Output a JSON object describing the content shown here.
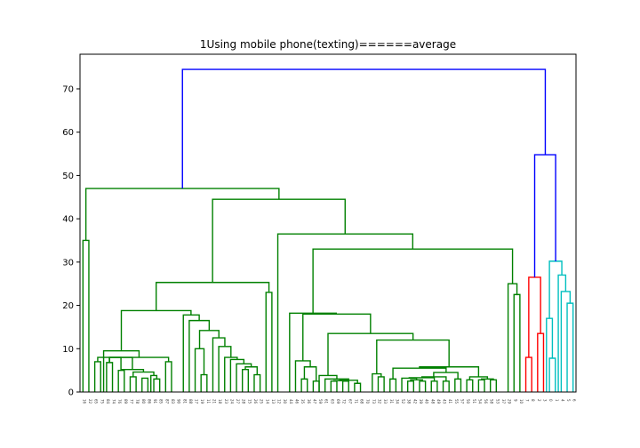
{
  "chart_data": {
    "type": "dendrogram",
    "title": "1Using mobile phone(texting)======average",
    "xlabel": "",
    "ylabel": "",
    "ylim": [
      0,
      78
    ],
    "yticks": [
      0,
      10,
      20,
      30,
      40,
      50,
      60,
      70
    ],
    "grid": false,
    "leaf_labels": [
      "16",
      "22",
      "65",
      "75",
      "84",
      "74",
      "76",
      "89",
      "77",
      "78",
      "80",
      "86",
      "91",
      "85",
      "87",
      "83",
      "90",
      "81",
      "88",
      "17",
      "19",
      "11",
      "21",
      "18",
      "23",
      "24",
      "27",
      "28",
      "15",
      "26",
      "25",
      "14",
      "13",
      "12",
      "30",
      "44",
      "46",
      "35",
      "36",
      "47",
      "59",
      "61",
      "63",
      "69",
      "72",
      "67",
      "71",
      "68",
      "70",
      "73",
      "32",
      "33",
      "31",
      "34",
      "52",
      "38",
      "42",
      "39",
      "40",
      "48",
      "49",
      "43",
      "41",
      "55",
      "57",
      "50",
      "51",
      "54",
      "56",
      "58",
      "53",
      "37",
      "29",
      "9",
      "10",
      "7",
      "8",
      "2",
      "3",
      "0",
      "1",
      "4",
      "5",
      "6"
    ],
    "leaf_count": 84,
    "cluster_colors": {
      "main": "#008000",
      "red": "#ff0000",
      "cyan": "#00bfbf",
      "root": "#0000ff"
    },
    "links": [
      {
        "a": 1,
        "b": 2,
        "h": 35.0,
        "color": "#008000"
      },
      {
        "a": 7,
        "b": 8,
        "h": 5.0,
        "color": "#008000"
      },
      {
        "a": 9,
        "b": 10,
        "h": 3.5,
        "color": "#008000"
      },
      {
        "a": 11,
        "b": 12,
        "h": 3.2,
        "color": "#008000"
      },
      {
        "a": 13,
        "b": 14,
        "h": 3.0,
        "color": "#008000"
      },
      {
        "a": 12.5,
        "b": 13.5,
        "h": 3.8,
        "color": "#008000"
      },
      {
        "a": 9.5,
        "b": 13,
        "h": 4.6,
        "color": "#008000"
      },
      {
        "a": 7.5,
        "b": 11.25,
        "h": 5.2,
        "color": "#008000"
      },
      {
        "a": 5,
        "b": 6,
        "h": 6.8,
        "color": "#008000"
      },
      {
        "a": 5.5,
        "b": 9.375,
        "h": 8.0,
        "color": "#008000"
      },
      {
        "a": 3,
        "b": 4,
        "h": 7.0,
        "color": "#008000"
      },
      {
        "a": 3.5,
        "b": 7.4375,
        "h": 8.0,
        "color": "#008000"
      },
      {
        "a": 15,
        "b": 16,
        "h": 7.0,
        "color": "#008000"
      },
      {
        "a": 5.47,
        "b": 15.5,
        "h": 8.0,
        "color": "#008000"
      },
      {
        "a": 4.5,
        "b": 10.5,
        "h": 9.5,
        "color": "#008000"
      },
      {
        "a": 21,
        "b": 22,
        "h": 4.0,
        "color": "#008000"
      },
      {
        "a": 20,
        "b": 21.5,
        "h": 10.0,
        "color": "#008000"
      },
      {
        "a": 28,
        "b": 29,
        "h": 5.2,
        "color": "#008000"
      },
      {
        "a": 30,
        "b": 31,
        "h": 4.0,
        "color": "#008000"
      },
      {
        "a": 28.5,
        "b": 30.5,
        "h": 5.8,
        "color": "#008000"
      },
      {
        "a": 27,
        "b": 29.5,
        "h": 6.5,
        "color": "#008000"
      },
      {
        "a": 26,
        "b": 28.25,
        "h": 7.5,
        "color": "#008000"
      },
      {
        "a": 25,
        "b": 27.125,
        "h": 8.0,
        "color": "#008000"
      },
      {
        "a": 24,
        "b": 26.06,
        "h": 10.5,
        "color": "#008000"
      },
      {
        "a": 23,
        "b": 25.03,
        "h": 12.5,
        "color": "#008000"
      },
      {
        "a": 20.75,
        "b": 24.02,
        "h": 14.2,
        "color": "#008000"
      },
      {
        "a": 19,
        "b": 22.38,
        "h": 16.5,
        "color": "#008000"
      },
      {
        "a": 18,
        "b": 20.69,
        "h": 17.8,
        "color": "#008000"
      },
      {
        "a": 7.5,
        "b": 19.3,
        "h": 18.8,
        "color": "#008000"
      },
      {
        "a": 32,
        "b": 33,
        "h": 23.0,
        "color": "#008000"
      },
      {
        "a": 13.4,
        "b": 32.5,
        "h": 25.3,
        "color": "#008000"
      },
      {
        "a": 38,
        "b": 39,
        "h": 3.0,
        "color": "#008000"
      },
      {
        "a": 40,
        "b": 41,
        "h": 2.5,
        "color": "#008000"
      },
      {
        "a": 38.5,
        "b": 40.5,
        "h": 5.8,
        "color": "#008000"
      },
      {
        "a": 37,
        "b": 39.5,
        "h": 7.2,
        "color": "#008000"
      },
      {
        "a": 43,
        "b": 44,
        "h": 2.5,
        "color": "#008000"
      },
      {
        "a": 45,
        "b": 46,
        "h": 2.5,
        "color": "#008000"
      },
      {
        "a": 43.5,
        "b": 45.5,
        "h": 2.6,
        "color": "#008000"
      },
      {
        "a": 47,
        "b": 48,
        "h": 2.0,
        "color": "#008000"
      },
      {
        "a": 44.5,
        "b": 47.5,
        "h": 2.7,
        "color": "#008000"
      },
      {
        "a": 42,
        "b": 46,
        "h": 3.0,
        "color": "#008000"
      },
      {
        "a": 41,
        "b": 44,
        "h": 3.8,
        "color": "#008000"
      },
      {
        "a": 51,
        "b": 52,
        "h": 3.5,
        "color": "#008000"
      },
      {
        "a": 50,
        "b": 51.5,
        "h": 4.2,
        "color": "#008000"
      },
      {
        "a": 53,
        "b": 54,
        "h": 3.0,
        "color": "#008000"
      },
      {
        "a": 56,
        "b": 57,
        "h": 2.5,
        "color": "#008000"
      },
      {
        "a": 58,
        "b": 59,
        "h": 2.5,
        "color": "#008000"
      },
      {
        "a": 56.5,
        "b": 58.5,
        "h": 2.8,
        "color": "#008000"
      },
      {
        "a": 55,
        "b": 57.5,
        "h": 3.2,
        "color": "#008000"
      },
      {
        "a": 60,
        "b": 61,
        "h": 2.5,
        "color": "#008000"
      },
      {
        "a": 56.25,
        "b": 60.5,
        "h": 3.3,
        "color": "#008000"
      },
      {
        "a": 62,
        "b": 63,
        "h": 2.5,
        "color": "#008000"
      },
      {
        "a": 58.4,
        "b": 62.5,
        "h": 3.5,
        "color": "#008000"
      },
      {
        "a": 64,
        "b": 65,
        "h": 3.0,
        "color": "#008000"
      },
      {
        "a": 60.4,
        "b": 64.5,
        "h": 4.5,
        "color": "#008000"
      },
      {
        "a": 53.5,
        "b": 62.5,
        "h": 5.5,
        "color": "#008000"
      },
      {
        "a": 66,
        "b": 67,
        "h": 2.8,
        "color": "#008000"
      },
      {
        "a": 68,
        "b": 69,
        "h": 2.8,
        "color": "#008000"
      },
      {
        "a": 70,
        "b": 71,
        "h": 2.8,
        "color": "#008000"
      },
      {
        "a": 68.5,
        "b": 70.5,
        "h": 3.0,
        "color": "#008000"
      },
      {
        "a": 66.5,
        "b": 69.5,
        "h": 3.5,
        "color": "#008000"
      },
      {
        "a": 58,
        "b": 68,
        "h": 5.8,
        "color": "#008000"
      },
      {
        "a": 50.75,
        "b": 63,
        "h": 12.0,
        "color": "#008000"
      },
      {
        "a": 42.5,
        "b": 56.9,
        "h": 13.5,
        "color": "#008000"
      },
      {
        "a": 38.25,
        "b": 49.7,
        "h": 18.0,
        "color": "#008000"
      },
      {
        "a": 36,
        "b": 43.9,
        "h": 18.2,
        "color": "#008000"
      },
      {
        "a": 74,
        "b": 75,
        "h": 22.5,
        "color": "#008000"
      },
      {
        "a": 73,
        "b": 74.5,
        "h": 25.0,
        "color": "#008000"
      },
      {
        "a": 39.96,
        "b": 73.75,
        "h": 33.0,
        "color": "#008000"
      },
      {
        "a": 34,
        "b": 56.85,
        "h": 36.5,
        "color": "#008000"
      },
      {
        "a": 22.95,
        "b": 45.4,
        "h": 44.5,
        "color": "#008000"
      },
      {
        "a": 1.5,
        "b": 34.2,
        "h": 47.0,
        "color": "#008000"
      },
      {
        "a": 76,
        "b": 77,
        "h": 8.0,
        "color": "#ff0000"
      },
      {
        "a": 78,
        "b": 79,
        "h": 13.5,
        "color": "#ff0000"
      },
      {
        "a": 76.5,
        "b": 78.5,
        "h": 26.5,
        "color": "#ff0000"
      },
      {
        "a": 80,
        "b": 81,
        "h": 7.8,
        "color": "#00bfbf"
      },
      {
        "a": 79.5,
        "b": 80.5,
        "h": 17.0,
        "color": "#00bfbf"
      },
      {
        "a": 83,
        "b": 84,
        "h": 20.5,
        "color": "#00bfbf"
      },
      {
        "a": 82,
        "b": 83.5,
        "h": 23.2,
        "color": "#00bfbf"
      },
      {
        "a": 81.5,
        "b": 82.75,
        "h": 27.0,
        "color": "#00bfbf"
      },
      {
        "a": 80,
        "b": 82.1,
        "h": 30.2,
        "color": "#00bfbf"
      },
      {
        "a": 77.5,
        "b": 81.05,
        "h": 54.8,
        "color": "#0000ff"
      },
      {
        "a": 17.85,
        "b": 79.3,
        "h": 74.5,
        "color": "#0000ff"
      }
    ]
  }
}
